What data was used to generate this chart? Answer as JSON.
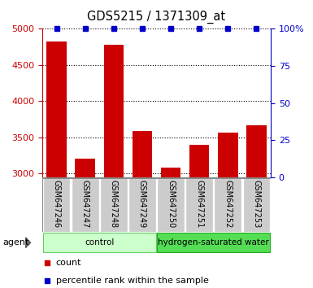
{
  "title": "GDS5215 / 1371309_at",
  "samples": [
    "GSM647246",
    "GSM647247",
    "GSM647248",
    "GSM647249",
    "GSM647250",
    "GSM647251",
    "GSM647252",
    "GSM647253"
  ],
  "counts": [
    4830,
    3200,
    4775,
    3590,
    3085,
    3400,
    3565,
    3670
  ],
  "percentile_ranks": [
    100,
    100,
    100,
    100,
    100,
    100,
    100,
    100
  ],
  "groups": [
    {
      "label": "control",
      "indices": [
        0,
        1,
        2,
        3
      ],
      "color": "#ccffcc",
      "border_color": "#66cc66"
    },
    {
      "label": "hydrogen-saturated water",
      "indices": [
        4,
        5,
        6,
        7
      ],
      "color": "#55dd55",
      "border_color": "#22aa22"
    }
  ],
  "bar_color": "#cc0000",
  "dot_color": "#0000cc",
  "ylim_left": [
    2950,
    5000
  ],
  "ylim_right": [
    0,
    100
  ],
  "yticks_left": [
    3000,
    3500,
    4000,
    4500,
    5000
  ],
  "yticks_right": [
    0,
    25,
    50,
    75,
    100
  ],
  "left_tick_color": "#cc0000",
  "right_tick_color": "#0000cc",
  "background_color": "#ffffff",
  "sample_box_color": "#cccccc",
  "agent_label": "agent",
  "legend_count": "count",
  "legend_percentile": "percentile rank within the sample"
}
